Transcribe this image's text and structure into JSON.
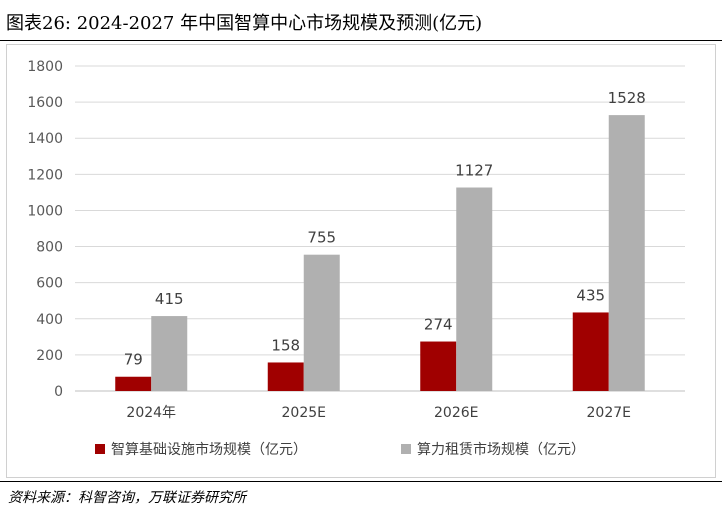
{
  "header": {
    "title": "图表26:  2024-2027 年中国智算中心市场规模及预测(亿元)"
  },
  "footer": {
    "source": "资料来源：科智咨询，万联证券研究所"
  },
  "chart_data": {
    "type": "bar",
    "title": "",
    "xlabel": "",
    "ylabel": "",
    "categories": [
      "2024年",
      "2025E",
      "2026E",
      "2027E"
    ],
    "series": [
      {
        "name": "智算基础设施市场规模（亿元）",
        "color": "#a00000",
        "values": [
          79,
          158,
          274,
          435
        ]
      },
      {
        "name": "算力租赁市场规模（亿元）",
        "color": "#b0b0b0",
        "values": [
          415,
          755,
          1127,
          1528
        ]
      }
    ],
    "ylim": [
      0,
      1800
    ],
    "yticks": [
      0,
      200,
      400,
      600,
      800,
      1000,
      1200,
      1400,
      1600,
      1800
    ],
    "grid": true,
    "legend": "bottom",
    "data_labels": true
  }
}
